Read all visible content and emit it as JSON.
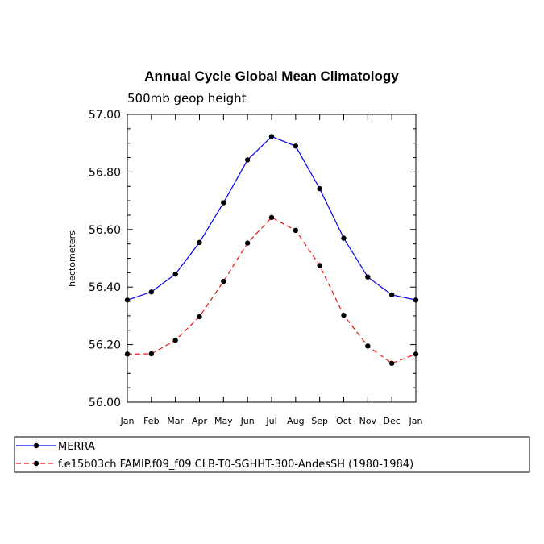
{
  "chart_data": {
    "type": "line",
    "title": "Annual Cycle Global Mean Climatology",
    "subtitle": "500mb geop height",
    "ylabel": "hectometers",
    "xlabel": "",
    "categories": [
      "Jan",
      "Feb",
      "Mar",
      "Apr",
      "May",
      "Jun",
      "Jul",
      "Aug",
      "Sep",
      "Oct",
      "Nov",
      "Dec",
      "Jan"
    ],
    "ylim": [
      56.0,
      57.0
    ],
    "yticks": [
      "56.00",
      "56.20",
      "56.40",
      "56.60",
      "56.80",
      "57.00"
    ],
    "grid": false,
    "legend_position": "bottom",
    "series": [
      {
        "name": "MERRA",
        "color": "#0000ee",
        "dash": "solid",
        "values": [
          56.355,
          56.383,
          56.445,
          56.555,
          56.693,
          56.842,
          56.923,
          56.89,
          56.742,
          56.57,
          56.435,
          56.373,
          56.355
        ]
      },
      {
        "name": "f.e15b03ch.FAMIP.f09_f09.CLB-T0-SGHHT-300-AndesSH (1980-1984)",
        "color": "#ee1111",
        "dash": "dashed",
        "values": [
          56.167,
          56.168,
          56.215,
          56.297,
          56.42,
          56.553,
          56.642,
          56.597,
          56.475,
          56.302,
          56.195,
          56.135,
          56.167
        ]
      }
    ]
  }
}
